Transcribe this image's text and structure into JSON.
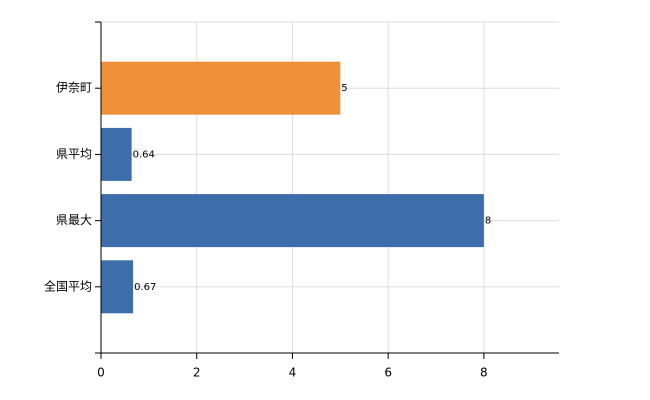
{
  "chart_data": {
    "type": "bar",
    "orientation": "horizontal",
    "categories": [
      "伊奈町",
      "県平均",
      "県最大",
      "全国平均"
    ],
    "values": [
      5,
      0.64,
      8,
      0.67
    ],
    "colors": [
      "#f0913a",
      "#3b6eaa",
      "#3b6eaa",
      "#3b6eaa"
    ],
    "xlim": [
      0,
      9.57
    ],
    "xticks": [
      0,
      2,
      4,
      6,
      8
    ],
    "grid": true
  }
}
